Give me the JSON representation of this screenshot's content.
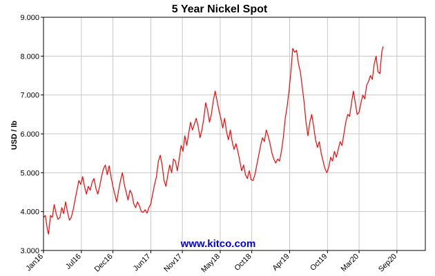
{
  "chart_data": {
    "type": "line",
    "title": "5 Year Nickel Spot",
    "xlabel": "",
    "ylabel": "USD / lb",
    "ylim": [
      3.0,
      9.0
    ],
    "yticks": [
      {
        "value": 3,
        "label": "3.000"
      },
      {
        "value": 4,
        "label": "4.000"
      },
      {
        "value": 5,
        "label": "5.000"
      },
      {
        "value": 6,
        "label": "6.000"
      },
      {
        "value": 7,
        "label": "7.000"
      },
      {
        "value": 8,
        "label": "8.000"
      },
      {
        "value": 9,
        "label": "9.000"
      }
    ],
    "xlim": [
      0,
      60.5
    ],
    "xticks": [
      {
        "month": 0,
        "label": "Jan16"
      },
      {
        "month": 6,
        "label": "Jul16"
      },
      {
        "month": 11,
        "label": "Dec16"
      },
      {
        "month": 17,
        "label": "Jun17"
      },
      {
        "month": 22,
        "label": "Nov17"
      },
      {
        "month": 28,
        "label": "May18"
      },
      {
        "month": 33,
        "label": "Oct18"
      },
      {
        "month": 39,
        "label": "Apr19"
      },
      {
        "month": 45,
        "label": "Oct19"
      },
      {
        "month": 50,
        "label": "Mar20"
      },
      {
        "month": 56,
        "label": "Sep20"
      }
    ],
    "grid": true,
    "series": [
      {
        "color": "#ff0000",
        "points": [
          [
            0.0,
            3.85
          ],
          [
            0.3,
            3.9
          ],
          [
            0.6,
            3.55
          ],
          [
            0.8,
            3.42
          ],
          [
            1.1,
            3.9
          ],
          [
            1.4,
            3.85
          ],
          [
            1.7,
            4.18
          ],
          [
            2.0,
            3.95
          ],
          [
            2.3,
            3.8
          ],
          [
            2.6,
            3.85
          ],
          [
            2.9,
            4.1
          ],
          [
            3.2,
            3.95
          ],
          [
            3.5,
            4.25
          ],
          [
            3.8,
            4.0
          ],
          [
            4.1,
            3.78
          ],
          [
            4.4,
            3.85
          ],
          [
            4.7,
            4.05
          ],
          [
            5.0,
            4.3
          ],
          [
            5.3,
            4.55
          ],
          [
            5.6,
            4.8
          ],
          [
            5.9,
            4.7
          ],
          [
            6.2,
            4.9
          ],
          [
            6.5,
            4.65
          ],
          [
            6.8,
            4.45
          ],
          [
            7.1,
            4.65
          ],
          [
            7.4,
            4.55
          ],
          [
            7.7,
            4.75
          ],
          [
            8.0,
            4.85
          ],
          [
            8.3,
            4.6
          ],
          [
            8.6,
            4.45
          ],
          [
            8.9,
            4.65
          ],
          [
            9.2,
            4.9
          ],
          [
            9.5,
            5.1
          ],
          [
            9.8,
            5.2
          ],
          [
            10.1,
            4.95
          ],
          [
            10.4,
            5.18
          ],
          [
            10.7,
            4.9
          ],
          [
            11.0,
            4.65
          ],
          [
            11.3,
            4.45
          ],
          [
            11.6,
            4.25
          ],
          [
            11.9,
            4.55
          ],
          [
            12.2,
            4.8
          ],
          [
            12.5,
            5.0
          ],
          [
            12.8,
            4.7
          ],
          [
            13.1,
            4.5
          ],
          [
            13.4,
            4.3
          ],
          [
            13.7,
            4.55
          ],
          [
            14.0,
            4.45
          ],
          [
            14.3,
            4.2
          ],
          [
            14.6,
            4.1
          ],
          [
            14.9,
            4.25
          ],
          [
            15.2,
            4.15
          ],
          [
            15.5,
            4.0
          ],
          [
            15.8,
            3.98
          ],
          [
            16.1,
            4.05
          ],
          [
            16.4,
            3.96
          ],
          [
            16.7,
            4.1
          ],
          [
            17.0,
            4.2
          ],
          [
            17.3,
            4.45
          ],
          [
            17.6,
            4.7
          ],
          [
            17.9,
            4.9
          ],
          [
            18.2,
            5.3
          ],
          [
            18.5,
            5.45
          ],
          [
            18.8,
            5.2
          ],
          [
            19.1,
            4.8
          ],
          [
            19.4,
            4.65
          ],
          [
            19.7,
            4.95
          ],
          [
            20.0,
            5.2
          ],
          [
            20.3,
            5.0
          ],
          [
            20.6,
            5.35
          ],
          [
            20.9,
            5.3
          ],
          [
            21.2,
            5.05
          ],
          [
            21.5,
            5.35
          ],
          [
            21.8,
            5.7
          ],
          [
            22.1,
            5.55
          ],
          [
            22.4,
            5.95
          ],
          [
            22.7,
            5.7
          ],
          [
            23.0,
            6.0
          ],
          [
            23.3,
            6.3
          ],
          [
            23.6,
            6.1
          ],
          [
            23.9,
            6.25
          ],
          [
            24.2,
            6.4
          ],
          [
            24.5,
            6.2
          ],
          [
            24.8,
            5.9
          ],
          [
            25.1,
            6.1
          ],
          [
            25.4,
            6.4
          ],
          [
            25.7,
            6.8
          ],
          [
            26.0,
            6.6
          ],
          [
            26.3,
            6.3
          ],
          [
            26.6,
            6.5
          ],
          [
            26.9,
            6.85
          ],
          [
            27.2,
            7.1
          ],
          [
            27.5,
            6.85
          ],
          [
            27.8,
            6.6
          ],
          [
            28.1,
            6.4
          ],
          [
            28.4,
            6.15
          ],
          [
            28.7,
            6.4
          ],
          [
            29.0,
            6.05
          ],
          [
            29.3,
            5.85
          ],
          [
            29.6,
            6.1
          ],
          [
            29.9,
            5.8
          ],
          [
            30.2,
            5.6
          ],
          [
            30.5,
            5.75
          ],
          [
            30.8,
            5.55
          ],
          [
            31.1,
            5.3
          ],
          [
            31.4,
            5.05
          ],
          [
            31.7,
            5.2
          ],
          [
            32.0,
            4.95
          ],
          [
            32.3,
            4.85
          ],
          [
            32.6,
            5.05
          ],
          [
            32.9,
            4.82
          ],
          [
            33.2,
            4.8
          ],
          [
            33.5,
            4.95
          ],
          [
            33.8,
            5.2
          ],
          [
            34.1,
            5.45
          ],
          [
            34.4,
            5.7
          ],
          [
            34.7,
            5.9
          ],
          [
            35.0,
            5.8
          ],
          [
            35.3,
            6.1
          ],
          [
            35.6,
            5.95
          ],
          [
            35.9,
            5.75
          ],
          [
            36.2,
            5.5
          ],
          [
            36.5,
            5.35
          ],
          [
            36.8,
            5.25
          ],
          [
            37.1,
            5.35
          ],
          [
            37.4,
            5.3
          ],
          [
            37.7,
            5.55
          ],
          [
            38.0,
            5.9
          ],
          [
            38.3,
            6.4
          ],
          [
            38.6,
            6.7
          ],
          [
            38.9,
            7.1
          ],
          [
            39.2,
            7.6
          ],
          [
            39.5,
            8.2
          ],
          [
            39.8,
            8.1
          ],
          [
            40.1,
            8.15
          ],
          [
            40.4,
            7.8
          ],
          [
            40.7,
            7.6
          ],
          [
            41.0,
            7.2
          ],
          [
            41.3,
            6.8
          ],
          [
            41.6,
            6.3
          ],
          [
            41.9,
            5.95
          ],
          [
            42.2,
            6.3
          ],
          [
            42.5,
            6.5
          ],
          [
            42.8,
            6.2
          ],
          [
            43.1,
            5.85
          ],
          [
            43.4,
            5.65
          ],
          [
            43.7,
            5.8
          ],
          [
            44.0,
            5.5
          ],
          [
            44.3,
            5.3
          ],
          [
            44.6,
            5.1
          ],
          [
            44.9,
            5.0
          ],
          [
            45.2,
            5.15
          ],
          [
            45.5,
            5.4
          ],
          [
            45.8,
            5.3
          ],
          [
            46.1,
            5.55
          ],
          [
            46.4,
            5.4
          ],
          [
            46.7,
            5.6
          ],
          [
            47.0,
            5.8
          ],
          [
            47.3,
            5.7
          ],
          [
            47.6,
            6.0
          ],
          [
            47.9,
            6.3
          ],
          [
            48.2,
            6.5
          ],
          [
            48.5,
            6.45
          ],
          [
            48.8,
            6.8
          ],
          [
            49.1,
            7.1
          ],
          [
            49.4,
            6.8
          ],
          [
            49.7,
            6.5
          ],
          [
            50.0,
            6.55
          ],
          [
            50.3,
            6.8
          ],
          [
            50.6,
            7.0
          ],
          [
            50.9,
            6.9
          ],
          [
            51.2,
            7.25
          ],
          [
            51.5,
            7.35
          ],
          [
            51.8,
            7.5
          ],
          [
            52.1,
            7.4
          ],
          [
            52.4,
            7.8
          ],
          [
            52.7,
            8.0
          ],
          [
            53.0,
            7.6
          ],
          [
            53.3,
            7.55
          ],
          [
            53.6,
            8.1
          ],
          [
            53.8,
            8.25
          ]
        ]
      }
    ],
    "watermark": "www.kitco.com"
  }
}
